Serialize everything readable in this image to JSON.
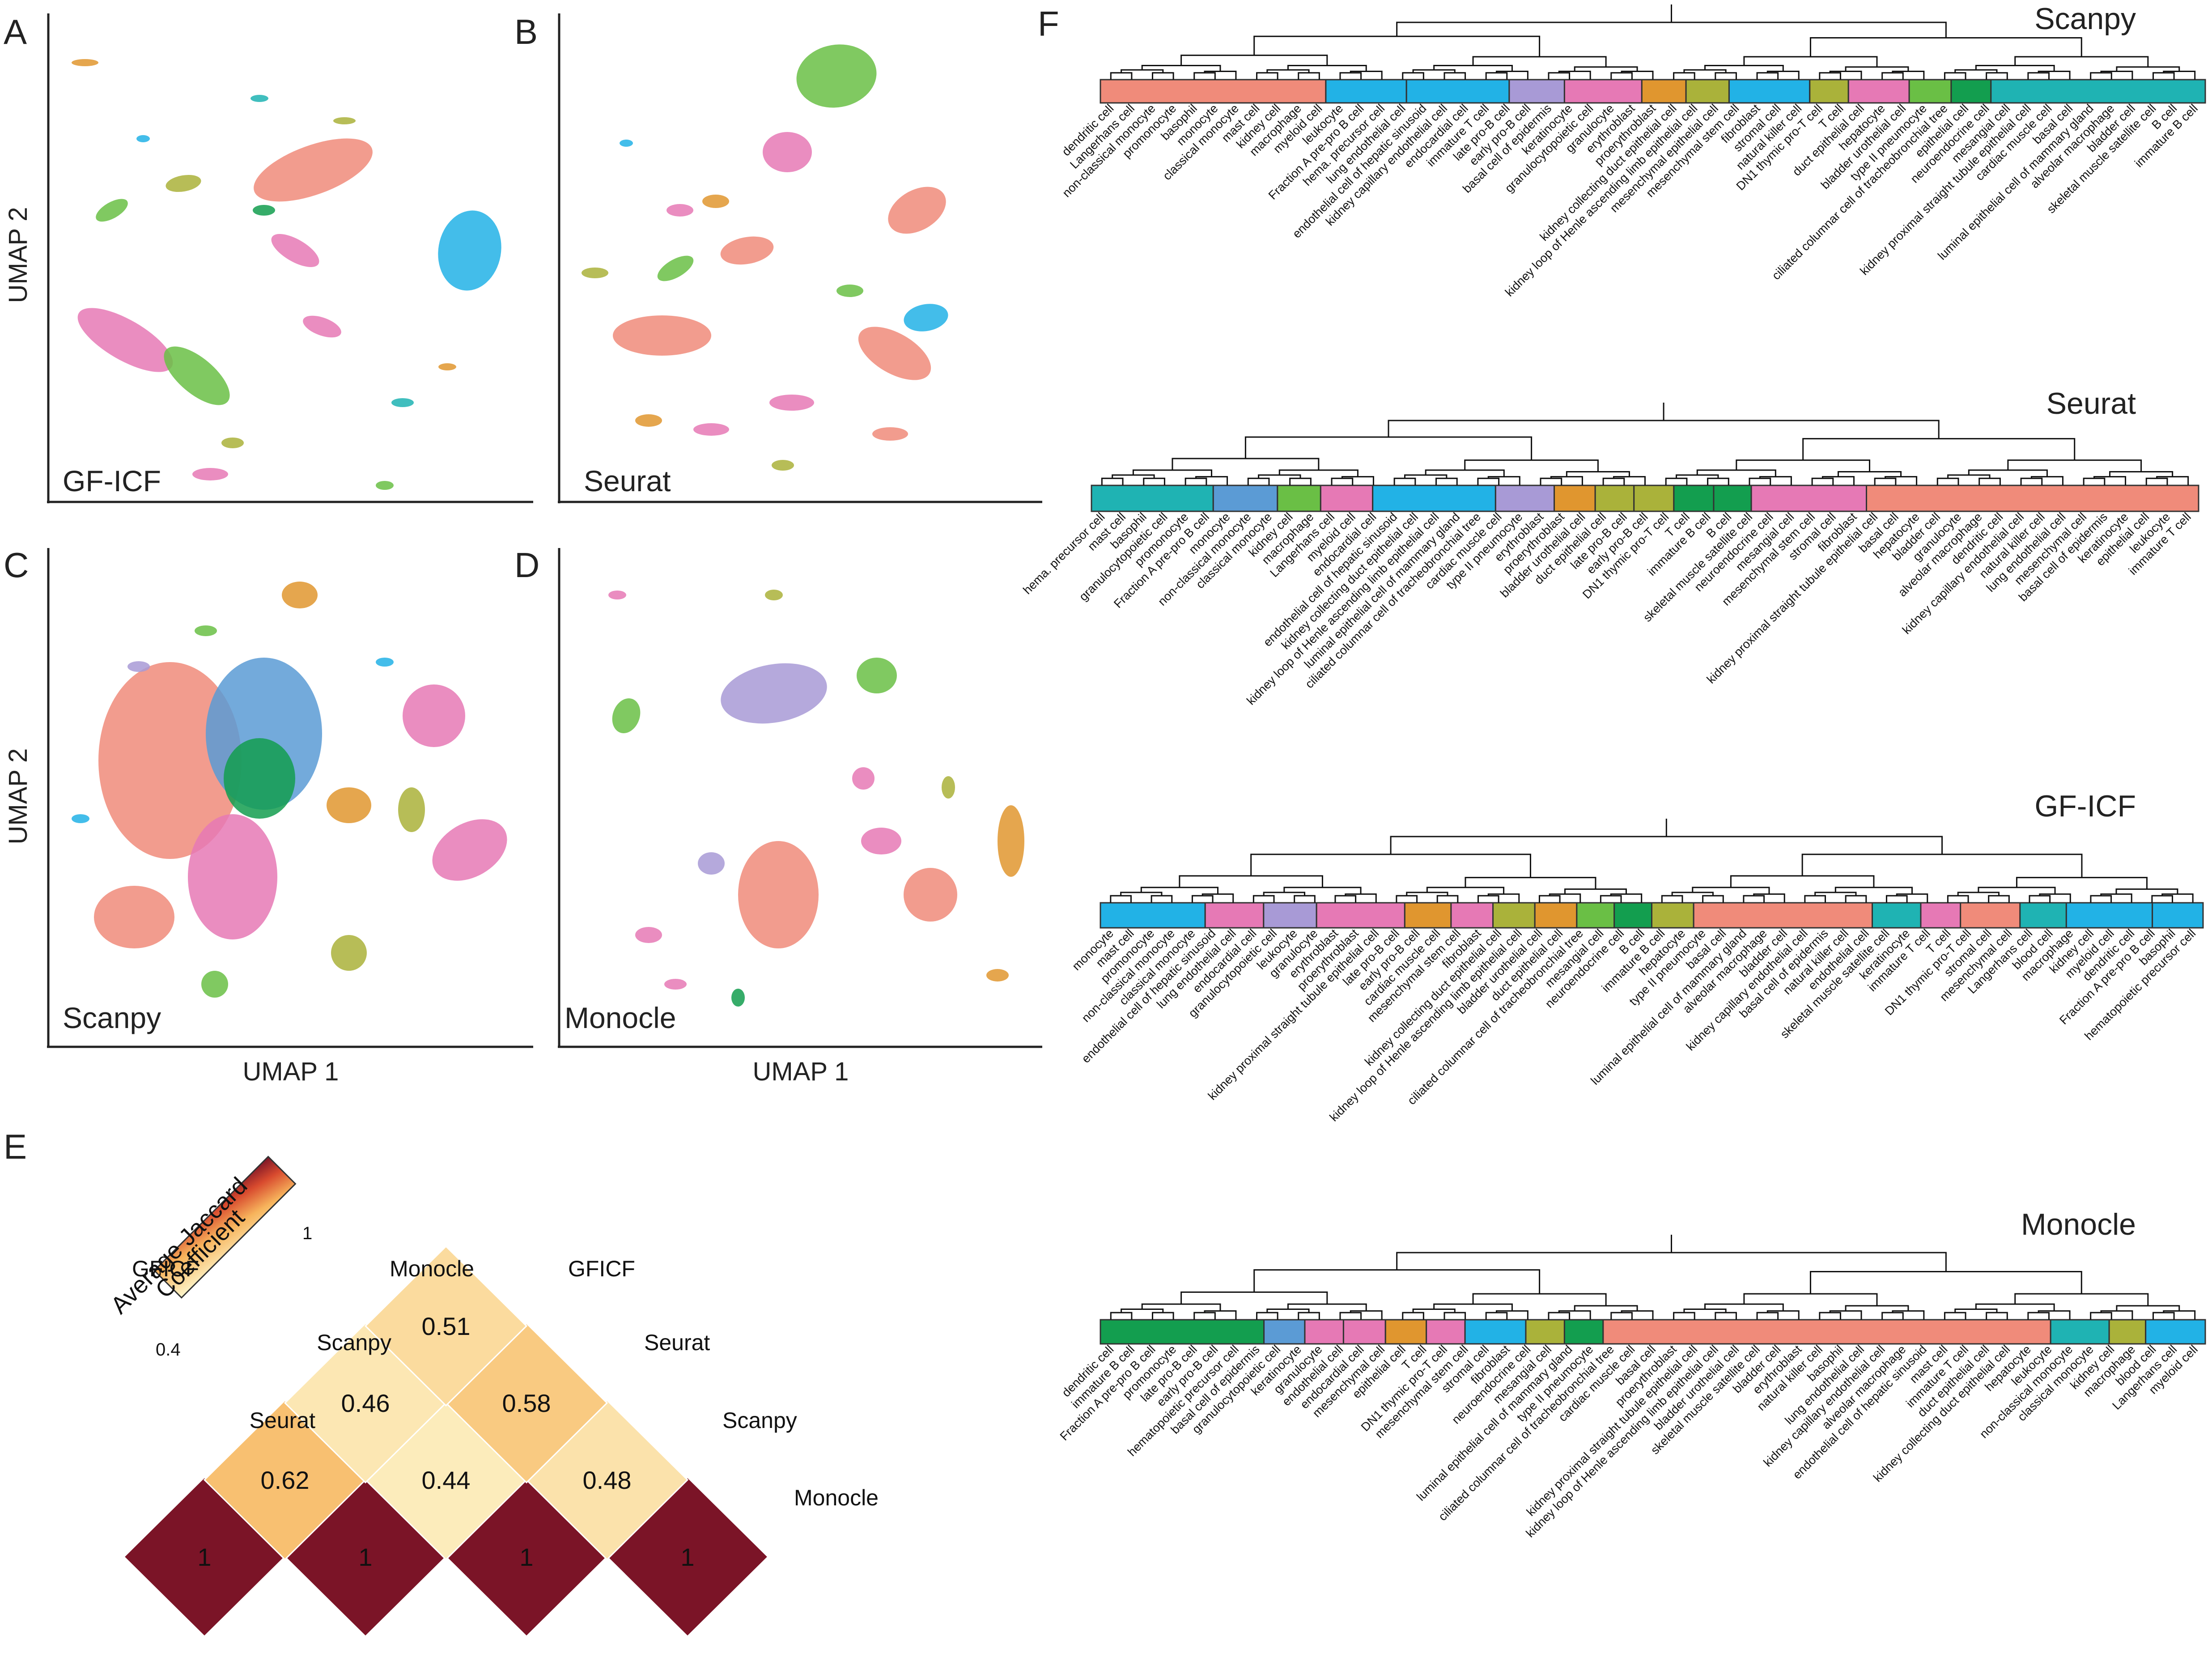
{
  "colors": {
    "salmon": "#f08b7a",
    "lightblue": "#22b2e6",
    "purple": "#a89ad6",
    "pink": "#e679b5",
    "orange": "#e0962f",
    "olive": "#aab23a",
    "green": "#6abf45",
    "darkgreen": "#139e4f",
    "teal": "#1fb3b3",
    "steel": "#5b9bd5",
    "jaccard_low": "#fdf3c1",
    "jaccard_mid": "#f6a24c",
    "jaccard_high": "#7b1427"
  },
  "panels": {
    "A": {
      "letter": "A",
      "method": "GF-ICF"
    },
    "B": {
      "letter": "B",
      "method": "Seurat"
    },
    "C": {
      "letter": "C",
      "method": "Scanpy"
    },
    "D": {
      "letter": "D",
      "method": "Monocle"
    },
    "E": {
      "letter": "E"
    },
    "F": {
      "letter": "F"
    }
  },
  "axes": {
    "x_label": "UMAP 1",
    "y_label": "UMAP 2"
  },
  "chart_data": {
    "type": "heatmap",
    "title": "Average Jaccard Coefficient",
    "colorbar": {
      "label_line1": "Average Jaccard",
      "label_line2": "Coefficient",
      "min_label": "0.4",
      "max_label": "1",
      "range": [
        0.4,
        1
      ]
    },
    "left_labels": [
      "GFICF",
      "Seurat",
      "Scanpy",
      "Monocle"
    ],
    "right_labels": [
      "GFICF",
      "Seurat",
      "Scanpy",
      "Monocle"
    ],
    "diagonal": [
      {
        "label": "1",
        "value": 1
      },
      {
        "label": "1",
        "value": 1
      },
      {
        "label": "1",
        "value": 1
      },
      {
        "label": "1",
        "value": 1
      }
    ],
    "pairs": [
      {
        "a": "GFICF",
        "b": "Seurat",
        "label": "0.62",
        "value": 0.62
      },
      {
        "a": "Seurat",
        "b": "Scanpy",
        "label": "0.44",
        "value": 0.44
      },
      {
        "a": "Scanpy",
        "b": "Monocle",
        "label": "0.48",
        "value": 0.48
      },
      {
        "a": "GFICF",
        "b": "Scanpy",
        "label": "0.46",
        "value": 0.46
      },
      {
        "a": "Seurat",
        "b": "Monocle",
        "label": "0.58",
        "value": 0.58
      },
      {
        "a": "GFICF",
        "b": "Monocle",
        "label": "0.51",
        "value": 0.51
      }
    ]
  },
  "dendrograms": [
    {
      "name": "Scanpy",
      "labels": [
        "dendritic cell",
        "Langerhans cell",
        "non-classical monocyte",
        "promonocyte",
        "basophil",
        "monocyte",
        "classical monocyte",
        "mast cell",
        "kidney cell",
        "macrophage",
        "myeloid cell",
        "leukocyte",
        "Fraction A pre-pro B cell",
        "hema. precursor cell",
        "lung endothelial cell",
        "endothelial cell of hepatic sinusoid",
        "kidney capillary endothelial cell",
        "endocardial cell",
        "immature T cell",
        "late pro-B cell",
        "early pro-B cell",
        "basal cell of epidermis",
        "keratinocyte",
        "granulocytopoietic cell",
        "granulocyte",
        "erythroblast",
        "proerythroblast",
        "kidney collecting duct epithelial cell",
        "kidney loop of Henle ascending limb epithelial cell",
        "mesenchymal epithelial cell",
        "mesenchymal stem cell",
        "fibroblast",
        "stromal cell",
        "natural killer cell",
        "DN1 thymic pro-T cell",
        "T cell",
        "duct epithelial cell",
        "hepatocyte",
        "bladder urothelial cell",
        "type II pneumocyte",
        "ciliated columnar cell of tracheobronchial tree",
        "epithelial cell",
        "neuroendocrine cell",
        "mesangial cell",
        "kidney proximal straight tubule epithelial cell",
        "cardiac muscle cell",
        "basal cell",
        "luminal epithelial cell of mammary gland",
        "alveolar macrophage",
        "bladder cell",
        "skeletal muscle satellite cell",
        "B cell",
        "immature B cell"
      ],
      "segments": [
        [
          0.0,
          0.204,
          "salmon"
        ],
        [
          0.204,
          0.277,
          "lightblue"
        ],
        [
          0.277,
          0.37,
          "lightblue"
        ],
        [
          0.37,
          0.42,
          "purple"
        ],
        [
          0.42,
          0.49,
          "pink"
        ],
        [
          0.49,
          0.53,
          "orange"
        ],
        [
          0.53,
          0.569,
          "olive"
        ],
        [
          0.569,
          0.642,
          "lightblue"
        ],
        [
          0.642,
          0.677,
          "olive"
        ],
        [
          0.677,
          0.732,
          "pink"
        ],
        [
          0.732,
          0.77,
          "green"
        ],
        [
          0.77,
          0.806,
          "darkgreen"
        ],
        [
          0.806,
          1.0,
          "teal"
        ]
      ]
    },
    {
      "name": "Seurat",
      "labels": [
        "hema. precursor cell",
        "mast cell",
        "basophil",
        "granulocytopoietic cell",
        "promonocyte",
        "Fraction A pre-pro B cell",
        "monocyte",
        "non-classical monocyte",
        "classical monocyte",
        "kidney cell",
        "macrophage",
        "Langerhans cell",
        "myeloid cell",
        "endocardial cell",
        "endothelial cell of hepatic sinusoid",
        "kidney collecting duct epithelial cell",
        "kidney loop of Henle ascending limb epithelial cell",
        "luminal epithelial cell of mammary gland",
        "ciliated columnar cell of tracheobronchial tree",
        "cardiac muscle cell",
        "type II pneumocyte",
        "erythroblast",
        "proerythroblast",
        "bladder urothelial cell",
        "duct epithelial cell",
        "late pro-B cell",
        "early pro-B cell",
        "DN1 thymic pro-T cell",
        "T cell",
        "immature B cell",
        "B cell",
        "skeletal muscle satellite cell",
        "neuroendocrine cell",
        "mesangial cell",
        "mesenchymal stem cell",
        "stromal cell",
        "fibroblast",
        "kidney proximal straight tubule epithelial cell",
        "basal cell",
        "hepatocyte",
        "bladder cell",
        "granulocyte",
        "alveolar macrophage",
        "dendritic cell",
        "kidney capillary endothelial cell",
        "natural killer cell",
        "lung endothelial cell",
        "mesenchymal cell",
        "basal cell of epidermis",
        "keratinocyte",
        "epithelial cell",
        "leukocyte",
        "immature T cell"
      ],
      "segments": [
        [
          0.0,
          0.11,
          "teal"
        ],
        [
          0.11,
          0.168,
          "steel"
        ],
        [
          0.168,
          0.207,
          "green"
        ],
        [
          0.207,
          0.254,
          "pink"
        ],
        [
          0.254,
          0.365,
          "lightblue"
        ],
        [
          0.365,
          0.418,
          "purple"
        ],
        [
          0.418,
          0.455,
          "orange"
        ],
        [
          0.455,
          0.49,
          "olive"
        ],
        [
          0.49,
          0.526,
          "olive"
        ],
        [
          0.526,
          0.562,
          "darkgreen"
        ],
        [
          0.562,
          0.596,
          "darkgreen"
        ],
        [
          0.596,
          0.7,
          "pink"
        ],
        [
          0.7,
          1.0,
          "salmon"
        ]
      ]
    },
    {
      "name": "GF-ICF",
      "labels": [
        "monocyte",
        "mast cell",
        "promonocyte",
        "non-classical monocyte",
        "classical monocyte",
        "endothelial cell of hepatic sinusoid",
        "lung endothelial cell",
        "endocardial cell",
        "granulocytopoietic cell",
        "leukocyte",
        "granulocyte",
        "erythroblast",
        "proerythroblast",
        "kidney proximal straight tubule epithelial cell",
        "late pro-B cell",
        "early pro-B cell",
        "cardiac muscle cell",
        "mesenchymal stem cell",
        "fibroblast",
        "kidney collecting duct epithelial cell",
        "kidney loop of Henle ascending limb epithelial cell",
        "bladder urothelial cell",
        "duct epithelial cell",
        "ciliated columnar cell of tracheobronchial tree",
        "mesangial cell",
        "neuroendocrine cell",
        "B cell",
        "immature B cell",
        "hepatocyte",
        "type II pneumocyte",
        "basal cell",
        "luminal epithelial cell of mammary gland",
        "alveolar macrophage",
        "bladder cell",
        "kidney capillary endothelial cell",
        "basal cell of epidermis",
        "natural killer cell",
        "endothelial cell",
        "skeletal muscle satellite cell",
        "keratinocyte",
        "immature T cell",
        "T cell",
        "DN1 thymic pro-T cell",
        "stromal cell",
        "mesenchymal cell",
        "Langerhans cell",
        "blood cell",
        "macrophage",
        "kidney cell",
        "myeloid cell",
        "dendritic cell",
        "Fraction A pre-pro B cell",
        "basophil",
        "hematopoietic precursor cell"
      ],
      "segments": [
        [
          0.0,
          0.095,
          "lightblue"
        ],
        [
          0.095,
          0.148,
          "pink"
        ],
        [
          0.148,
          0.196,
          "purple"
        ],
        [
          0.196,
          0.276,
          "pink"
        ],
        [
          0.276,
          0.318,
          "orange"
        ],
        [
          0.318,
          0.356,
          "pink"
        ],
        [
          0.356,
          0.394,
          "olive"
        ],
        [
          0.394,
          0.432,
          "orange"
        ],
        [
          0.432,
          0.466,
          "green"
        ],
        [
          0.466,
          0.5,
          "darkgreen"
        ],
        [
          0.5,
          0.538,
          "olive"
        ],
        [
          0.538,
          0.7,
          "salmon"
        ],
        [
          0.7,
          0.744,
          "teal"
        ],
        [
          0.744,
          0.78,
          "pink"
        ],
        [
          0.78,
          0.834,
          "salmon"
        ],
        [
          0.834,
          0.876,
          "teal"
        ],
        [
          0.876,
          0.954,
          "lightblue"
        ],
        [
          0.954,
          1.0,
          "lightblue"
        ]
      ]
    },
    {
      "name": "Monocle",
      "labels": [
        "dendritic cell",
        "immature B cell",
        "Fraction A pre-pro B cell",
        "promonocyte",
        "late pro-B cell",
        "early pro-B cell",
        "hematopoietic precursor cell",
        "basal cell of epidermis",
        "granulocytopoietic cell",
        "keratinocyte",
        "granulocyte",
        "endothelial cell",
        "endocardial cell",
        "mesenchymal cell",
        "epithelial cell",
        "T cell",
        "DN1 thymic pro-T cell",
        "mesenchymal stem cell",
        "stromal cell",
        "fibroblast",
        "neuroendocrine cell",
        "mesangial cell",
        "luminal epithelial cell of mammary gland",
        "type II pneumocyte",
        "ciliated columnar cell of tracheobronchial tree",
        "cardiac muscle cell",
        "basal cell",
        "proerythroblast",
        "kidney proximal straight tubule epithelial cell",
        "kidney loop of Henle ascending limb epithelial cell",
        "bladder urothelial cell",
        "skeletal muscle satellite cell",
        "bladder cell",
        "erythroblast",
        "natural killer cell",
        "basophil",
        "lung endothelial cell",
        "kidney capillary endothelial cell",
        "alveolar macrophage",
        "endothelial cell of hepatic sinusoid",
        "mast cell",
        "immature T cell",
        "duct epithelial cell",
        "kidney collecting duct epithelial cell",
        "hepatocyte",
        "leukocyte",
        "non-classical monocyte",
        "classical monocyte",
        "kidney cell",
        "macrophage",
        "blood cell",
        "Langerhans cell",
        "myeloid cell"
      ],
      "segments": [
        [
          0.0,
          0.148,
          "darkgreen"
        ],
        [
          0.148,
          0.185,
          "steel"
        ],
        [
          0.185,
          0.22,
          "pink"
        ],
        [
          0.22,
          0.258,
          "pink"
        ],
        [
          0.258,
          0.295,
          "orange"
        ],
        [
          0.295,
          0.33,
          "pink"
        ],
        [
          0.33,
          0.385,
          "lightblue"
        ],
        [
          0.385,
          0.42,
          "olive"
        ],
        [
          0.42,
          0.455,
          "darkgreen"
        ],
        [
          0.455,
          0.86,
          "salmon"
        ],
        [
          0.86,
          0.913,
          "teal"
        ],
        [
          0.913,
          0.946,
          "olive"
        ],
        [
          0.946,
          1.0,
          "lightblue"
        ]
      ]
    }
  ]
}
